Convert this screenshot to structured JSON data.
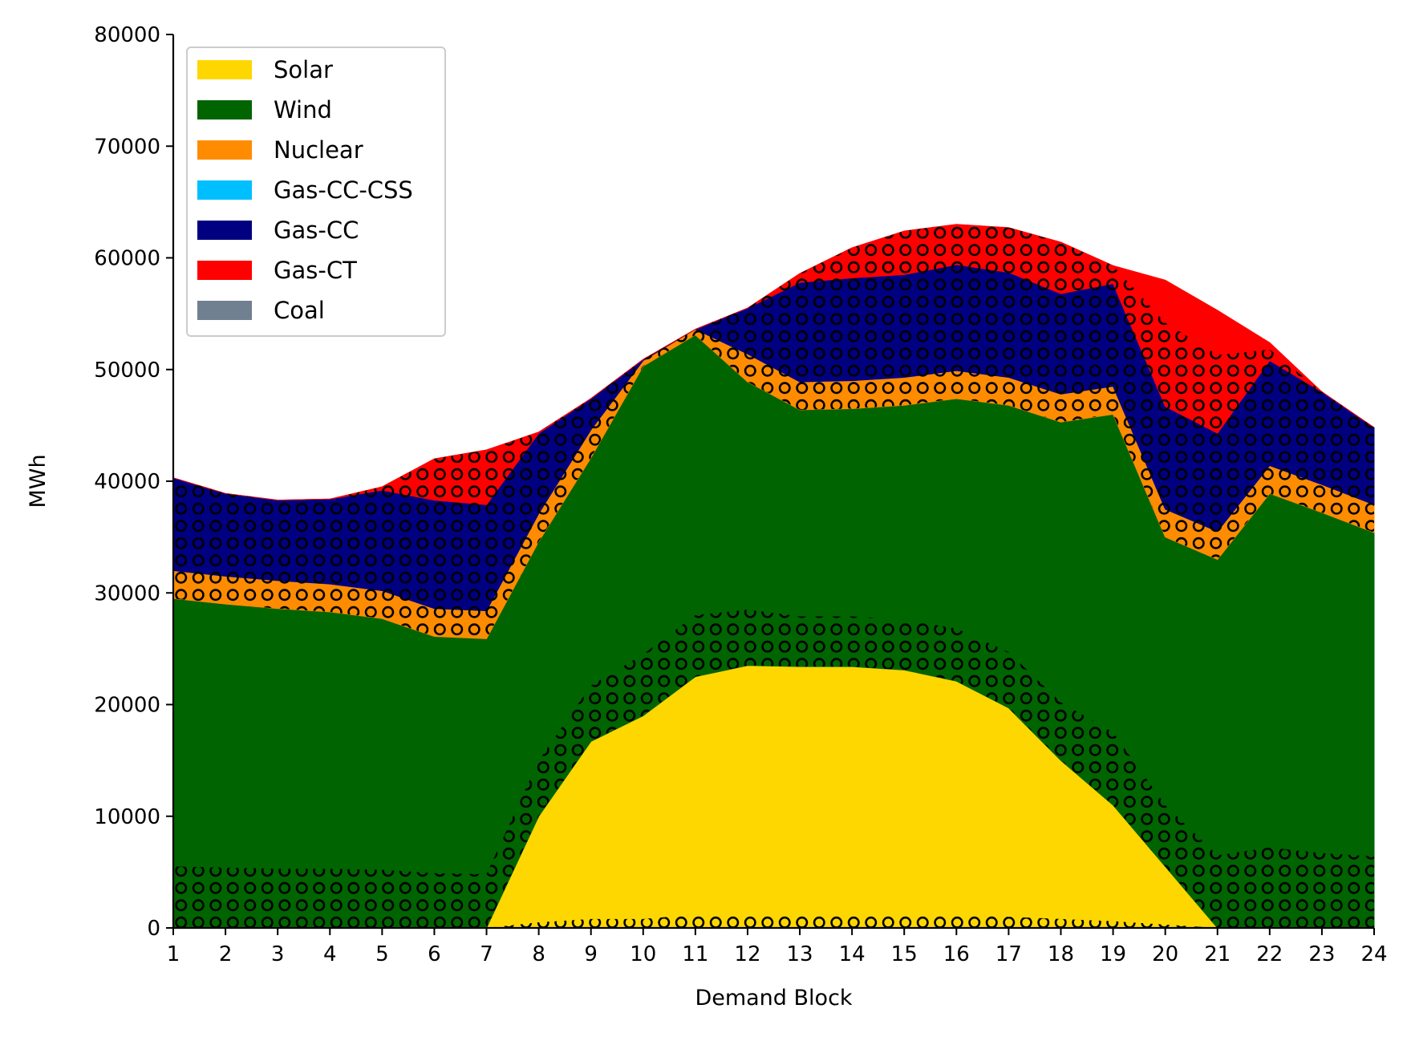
{
  "chart_data": {
    "type": "area",
    "stacked": true,
    "xlabel": "Demand Block",
    "ylabel": "MWh",
    "x": [
      1,
      2,
      3,
      4,
      5,
      6,
      7,
      8,
      9,
      10,
      11,
      12,
      13,
      14,
      15,
      16,
      17,
      18,
      19,
      20,
      21,
      22,
      23,
      24
    ],
    "xlim": [
      1,
      24
    ],
    "ylim": [
      0,
      80000
    ],
    "yticks": [
      0,
      10000,
      20000,
      30000,
      40000,
      50000,
      60000,
      70000,
      80000
    ],
    "grid": false,
    "legend_position": "top-left",
    "hatch_pattern": "circles",
    "series": [
      {
        "name": "Solar",
        "color": "#FFD700",
        "values": [
          0,
          0,
          0,
          0,
          0,
          0,
          0,
          10000,
          16700,
          19000,
          22500,
          23500,
          23400,
          23400,
          23100,
          22100,
          19700,
          15000,
          11000,
          5500,
          0,
          0,
          0,
          0
        ]
      },
      {
        "name": "Wind",
        "color": "#006400",
        "values": [
          29500,
          29000,
          28600,
          28300,
          27700,
          26100,
          25900,
          24600,
          25400,
          31300,
          30600,
          25400,
          23000,
          23100,
          23700,
          25300,
          27100,
          30300,
          35000,
          29500,
          33000,
          38900,
          37200,
          35400
        ]
      },
      {
        "name": "Nuclear",
        "color": "#FF8C00",
        "values": [
          2500,
          2500,
          2500,
          2500,
          2500,
          2500,
          2500,
          2500,
          2500,
          500,
          500,
          2500,
          2500,
          2500,
          2500,
          2500,
          2500,
          2500,
          2500,
          2500,
          2500,
          2500,
          2500,
          2500
        ]
      },
      {
        "name": "Gas-CC-CSS",
        "color": "#00BFFF",
        "values": [
          0,
          0,
          0,
          0,
          0,
          0,
          0,
          0,
          0,
          0,
          0,
          0,
          0,
          0,
          0,
          0,
          0,
          0,
          0,
          0,
          0,
          0,
          0,
          0
        ]
      },
      {
        "name": "Gas-CC",
        "color": "#000080",
        "values": [
          8300,
          7400,
          7200,
          7600,
          9000,
          9700,
          9500,
          7200,
          2800,
          100,
          0,
          4100,
          8900,
          9200,
          9200,
          9500,
          9400,
          9000,
          9200,
          9200,
          8800,
          9400,
          8300,
          6900
        ]
      },
      {
        "name": "Gas-CT",
        "color": "#FF0000",
        "values": [
          0,
          0,
          0,
          0,
          300,
          3700,
          4900,
          100,
          0,
          0,
          0,
          0,
          800,
          2700,
          3900,
          3600,
          4000,
          4600,
          1600,
          11300,
          11000,
          1600,
          0,
          0
        ]
      },
      {
        "name": "Coal",
        "color": "#708090",
        "values": [
          0,
          0,
          0,
          0,
          0,
          0,
          0,
          0,
          0,
          0,
          0,
          0,
          0,
          0,
          0,
          0,
          0,
          0,
          0,
          0,
          0,
          0,
          0,
          0
        ]
      }
    ],
    "hatched_overlay": [
      {
        "base": "Solar",
        "color": "#FFD700",
        "values": [
          0,
          0,
          0,
          0,
          0,
          0,
          0,
          500,
          800,
          800,
          1200,
          1300,
          1300,
          1300,
          1300,
          1300,
          1000,
          800,
          600,
          300,
          0,
          0,
          0,
          0
        ]
      },
      {
        "base": "Wind",
        "color": "#006400",
        "values": [
          5500,
          5400,
          5300,
          5300,
          5200,
          4900,
          4800,
          5000,
          5000,
          5500,
          5500,
          5000,
          4500,
          4500,
          4500,
          4700,
          5000,
          5200,
          6500,
          5500,
          6500,
          7200,
          6700,
          6400
        ]
      },
      {
        "base": "Nuclear",
        "color": "#FF8C00",
        "values": [
          2500,
          2500,
          2500,
          2500,
          2500,
          2500,
          2500,
          2500,
          2500,
          500,
          500,
          2500,
          2500,
          2500,
          2500,
          2500,
          2500,
          2500,
          2500,
          2500,
          2500,
          2500,
          2500,
          2500
        ]
      },
      {
        "base": "Gas-CC",
        "color": "#000080",
        "values": [
          8300,
          7400,
          7200,
          7600,
          9000,
          9700,
          9500,
          7200,
          2800,
          100,
          0,
          4100,
          8900,
          9200,
          9200,
          9500,
          9400,
          9000,
          9200,
          9200,
          8800,
          9400,
          8300,
          6900
        ]
      },
      {
        "base": "Gas-CT",
        "color": "#FF0000",
        "values": [
          0,
          0,
          0,
          0,
          300,
          3700,
          4900,
          100,
          0,
          0,
          0,
          0,
          800,
          2700,
          3900,
          3600,
          4000,
          4600,
          1600,
          7500,
          7000,
          1000,
          0,
          0
        ]
      }
    ]
  }
}
